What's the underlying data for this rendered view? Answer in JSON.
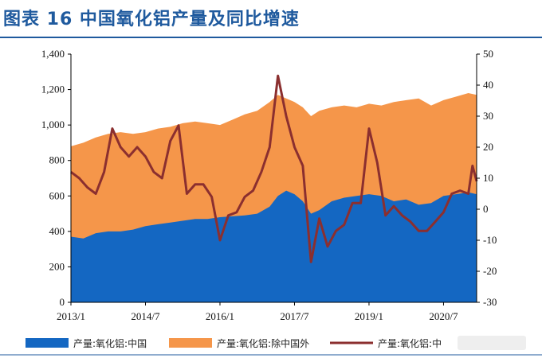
{
  "header": {
    "title": "图表 16 中国氧化铝产量及同比增速"
  },
  "colors": {
    "china": "#1467c2",
    "ex_china": "#f5964a",
    "yoy": "#8b2f2f",
    "title": "#1f5a9e"
  },
  "chart_data": {
    "type": "area",
    "x_tick_labels": [
      "2013/1",
      "2014/7",
      "2016/1",
      "2017/7",
      "2019/1",
      "2020/7"
    ],
    "y_left": {
      "range": [
        0,
        1400
      ],
      "ticks": [
        0,
        200,
        400,
        600,
        800,
        1000,
        1200,
        1400
      ],
      "tick_labels": [
        "0",
        "200",
        "400",
        "600",
        "800",
        "1,000",
        "1,200",
        "1,400"
      ]
    },
    "y_right": {
      "range": [
        -30,
        50
      ],
      "ticks": [
        -30,
        -20,
        -10,
        0,
        10,
        20,
        30,
        40,
        50
      ],
      "tick_labels": [
        "-30",
        "-20",
        "-10",
        "0",
        "10",
        "20",
        "30",
        "40",
        "50"
      ]
    },
    "x_range": [
      "2013-01",
      "2021-03"
    ],
    "legend_position": "bottom",
    "series": [
      {
        "name": "产量:氧化铝:中国",
        "kind": "area",
        "axis": "left",
        "color": "#1467c2",
        "points": [
          [
            "2013-01",
            370
          ],
          [
            "2013-04",
            360
          ],
          [
            "2013-07",
            390
          ],
          [
            "2013-10",
            400
          ],
          [
            "2014-01",
            400
          ],
          [
            "2014-04",
            410
          ],
          [
            "2014-07",
            430
          ],
          [
            "2014-10",
            440
          ],
          [
            "2015-01",
            450
          ],
          [
            "2015-04",
            460
          ],
          [
            "2015-07",
            470
          ],
          [
            "2015-10",
            470
          ],
          [
            "2016-01",
            480
          ],
          [
            "2016-04",
            485
          ],
          [
            "2016-07",
            490
          ],
          [
            "2016-10",
            500
          ],
          [
            "2017-01",
            540
          ],
          [
            "2017-03",
            600
          ],
          [
            "2017-05",
            630
          ],
          [
            "2017-07",
            610
          ],
          [
            "2017-09",
            570
          ],
          [
            "2017-11",
            500
          ],
          [
            "2018-01",
            520
          ],
          [
            "2018-04",
            570
          ],
          [
            "2018-07",
            590
          ],
          [
            "2018-10",
            600
          ],
          [
            "2019-01",
            610
          ],
          [
            "2019-04",
            600
          ],
          [
            "2019-07",
            570
          ],
          [
            "2019-10",
            580
          ],
          [
            "2020-01",
            550
          ],
          [
            "2020-04",
            560
          ],
          [
            "2020-07",
            600
          ],
          [
            "2020-10",
            610
          ],
          [
            "2021-01",
            620
          ],
          [
            "2021-03",
            610
          ]
        ]
      },
      {
        "name": "产量:氧化铝:除中国外",
        "kind": "area",
        "axis": "left",
        "color": "#f5964a",
        "points": [
          [
            "2013-01",
            880
          ],
          [
            "2013-04",
            900
          ],
          [
            "2013-07",
            930
          ],
          [
            "2013-10",
            950
          ],
          [
            "2014-01",
            960
          ],
          [
            "2014-04",
            950
          ],
          [
            "2014-07",
            960
          ],
          [
            "2014-10",
            980
          ],
          [
            "2015-01",
            990
          ],
          [
            "2015-04",
            1010
          ],
          [
            "2015-07",
            1020
          ],
          [
            "2015-10",
            1010
          ],
          [
            "2016-01",
            1000
          ],
          [
            "2016-04",
            1030
          ],
          [
            "2016-07",
            1060
          ],
          [
            "2016-10",
            1080
          ],
          [
            "2017-01",
            1130
          ],
          [
            "2017-03",
            1170
          ],
          [
            "2017-05",
            1150
          ],
          [
            "2017-07",
            1130
          ],
          [
            "2017-09",
            1100
          ],
          [
            "2017-11",
            1050
          ],
          [
            "2018-01",
            1080
          ],
          [
            "2018-04",
            1100
          ],
          [
            "2018-07",
            1110
          ],
          [
            "2018-10",
            1100
          ],
          [
            "2019-01",
            1120
          ],
          [
            "2019-04",
            1110
          ],
          [
            "2019-07",
            1130
          ],
          [
            "2019-10",
            1140
          ],
          [
            "2020-01",
            1150
          ],
          [
            "2020-04",
            1110
          ],
          [
            "2020-07",
            1140
          ],
          [
            "2020-10",
            1160
          ],
          [
            "2021-01",
            1180
          ],
          [
            "2021-03",
            1170
          ]
        ]
      },
      {
        "name": "产量:氧化铝:中",
        "kind": "line",
        "axis": "right",
        "color": "#8b2f2f",
        "points": [
          [
            "2013-01",
            12
          ],
          [
            "2013-03",
            10
          ],
          [
            "2013-05",
            7
          ],
          [
            "2013-07",
            5
          ],
          [
            "2013-09",
            12
          ],
          [
            "2013-11",
            26
          ],
          [
            "2014-01",
            20
          ],
          [
            "2014-03",
            17
          ],
          [
            "2014-05",
            20
          ],
          [
            "2014-07",
            17
          ],
          [
            "2014-09",
            12
          ],
          [
            "2014-11",
            10
          ],
          [
            "2015-01",
            22
          ],
          [
            "2015-03",
            27
          ],
          [
            "2015-05",
            5
          ],
          [
            "2015-07",
            8
          ],
          [
            "2015-09",
            8
          ],
          [
            "2015-11",
            4
          ],
          [
            "2016-01",
            -10
          ],
          [
            "2016-03",
            -2
          ],
          [
            "2016-05",
            -1
          ],
          [
            "2016-07",
            4
          ],
          [
            "2016-09",
            6
          ],
          [
            "2016-11",
            12
          ],
          [
            "2017-01",
            20
          ],
          [
            "2017-03",
            43
          ],
          [
            "2017-05",
            30
          ],
          [
            "2017-07",
            20
          ],
          [
            "2017-09",
            14
          ],
          [
            "2017-11",
            -17
          ],
          [
            "2018-01",
            -3
          ],
          [
            "2018-03",
            -12
          ],
          [
            "2018-05",
            -7
          ],
          [
            "2018-07",
            -5
          ],
          [
            "2018-09",
            2
          ],
          [
            "2018-11",
            2
          ],
          [
            "2019-01",
            26
          ],
          [
            "2019-03",
            15
          ],
          [
            "2019-05",
            -2
          ],
          [
            "2019-07",
            1
          ],
          [
            "2019-09",
            -2
          ],
          [
            "2019-11",
            -4
          ],
          [
            "2020-01",
            -7
          ],
          [
            "2020-03",
            -7
          ],
          [
            "2020-05",
            -4
          ],
          [
            "2020-07",
            -1
          ],
          [
            "2020-09",
            5
          ],
          [
            "2020-11",
            6
          ],
          [
            "2021-01",
            5
          ],
          [
            "2021-02",
            14
          ],
          [
            "2021-03",
            9
          ]
        ]
      }
    ]
  }
}
